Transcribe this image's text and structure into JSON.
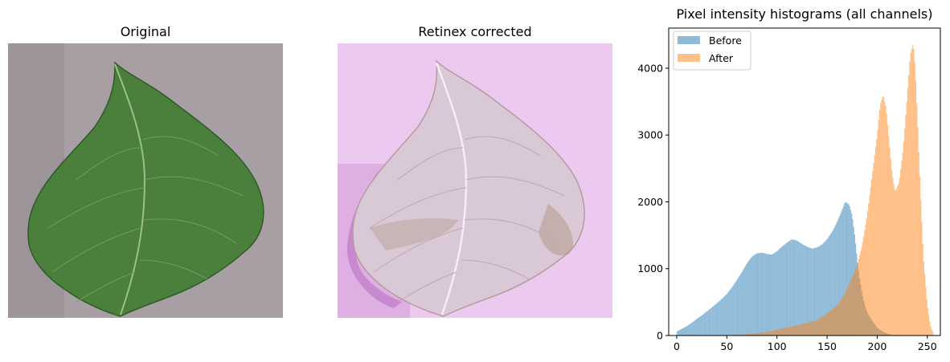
{
  "panels": {
    "original": {
      "title": "Original"
    },
    "corrected": {
      "title": "Retinex corrected"
    }
  },
  "colors": {
    "before": "#1f77b4",
    "after": "#ff7f0e",
    "original_background": "#a89fa4",
    "original_leaf": "#4a7f3c",
    "corrected_background": "#ecc9ee",
    "corrected_leaf": "#d9c8d6"
  },
  "chart_data": {
    "type": "bar",
    "title": "Pixel intensity histograms (all channels)",
    "xlabel": "",
    "ylabel": "",
    "xlim": [
      -8,
      263
    ],
    "ylim": [
      0,
      4600
    ],
    "xticks": [
      0,
      50,
      100,
      150,
      200,
      250
    ],
    "yticks": [
      0,
      1000,
      2000,
      3000,
      4000
    ],
    "grid": false,
    "legend_position": "top-left",
    "bins": 256,
    "series": [
      {
        "name": "Before",
        "alpha": 0.5,
        "x": [
          0,
          5,
          10,
          15,
          20,
          25,
          30,
          35,
          40,
          45,
          50,
          55,
          60,
          65,
          70,
          75,
          80,
          85,
          90,
          95,
          100,
          105,
          110,
          115,
          120,
          125,
          130,
          135,
          140,
          145,
          150,
          155,
          160,
          165,
          168,
          172,
          175,
          178,
          180,
          183,
          186,
          190,
          195,
          200,
          205,
          210,
          215,
          255
        ],
        "y": [
          60,
          100,
          140,
          190,
          250,
          300,
          360,
          420,
          480,
          550,
          620,
          720,
          830,
          950,
          1080,
          1180,
          1230,
          1240,
          1220,
          1210,
          1260,
          1330,
          1390,
          1440,
          1420,
          1370,
          1330,
          1300,
          1320,
          1360,
          1440,
          1550,
          1700,
          1880,
          2000,
          1960,
          1800,
          1450,
          1150,
          800,
          550,
          350,
          220,
          120,
          60,
          30,
          10,
          0
        ]
      },
      {
        "name": "After",
        "alpha": 0.5,
        "x": [
          0,
          50,
          70,
          90,
          100,
          120,
          140,
          150,
          160,
          165,
          170,
          175,
          180,
          185,
          190,
          195,
          200,
          203,
          206,
          209,
          212,
          215,
          218,
          222,
          226,
          230,
          233,
          236,
          238,
          240,
          243,
          246,
          250,
          253,
          255
        ],
        "y": [
          0,
          0,
          20,
          50,
          90,
          150,
          230,
          330,
          450,
          560,
          700,
          870,
          1050,
          1350,
          1800,
          2400,
          3000,
          3450,
          3600,
          3400,
          2900,
          2400,
          2150,
          2300,
          2800,
          3600,
          4200,
          4380,
          4000,
          3300,
          2200,
          1200,
          450,
          160,
          60
        ]
      }
    ]
  }
}
